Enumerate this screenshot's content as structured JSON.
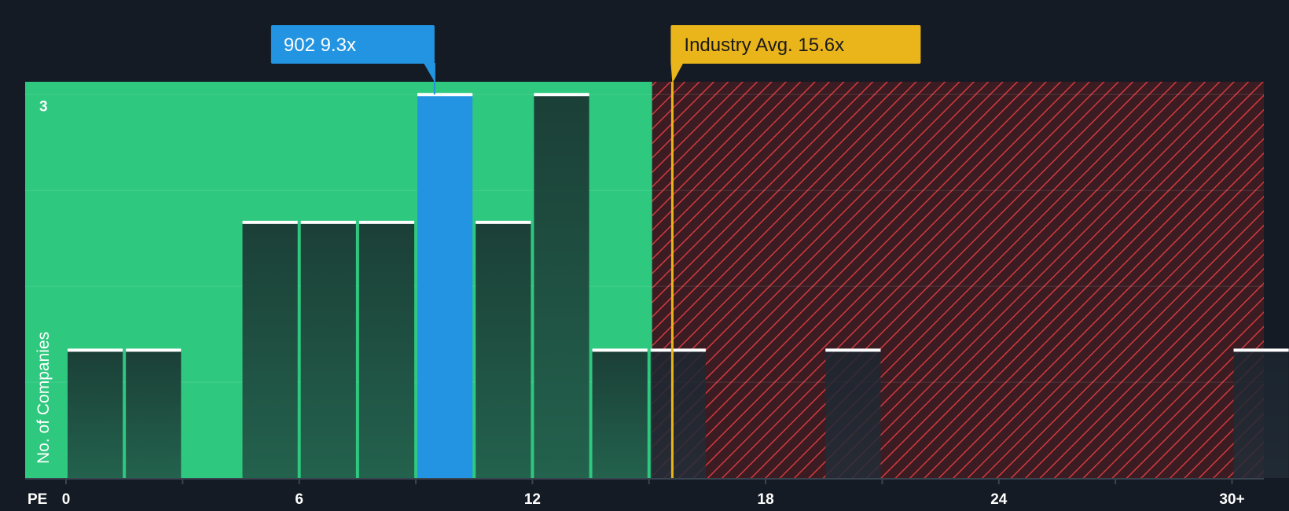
{
  "chart_data": {
    "type": "bar",
    "xlabel": "PE",
    "ylabel": "No. of Companies",
    "x_ticks": [
      0,
      6,
      12,
      18,
      24,
      30
    ],
    "x_tick_labels": [
      "0",
      "6",
      "12",
      "18",
      "24",
      "30+"
    ],
    "xlim": [
      0,
      30.8
    ],
    "ylim": [
      0,
      3.1
    ],
    "y_tick_labels": [
      {
        "value": 3,
        "label": "3"
      }
    ],
    "bin_width": 1.5,
    "bars": [
      {
        "x": 0.0,
        "value": 1
      },
      {
        "x": 1.5,
        "value": 1
      },
      {
        "x": 4.5,
        "value": 2
      },
      {
        "x": 6.0,
        "value": 2
      },
      {
        "x": 7.5,
        "value": 2
      },
      {
        "x": 9.0,
        "value": 3,
        "highlight": true
      },
      {
        "x": 10.5,
        "value": 2
      },
      {
        "x": 12.0,
        "value": 3
      },
      {
        "x": 13.5,
        "value": 1
      },
      {
        "x": 15.0,
        "value": 1
      },
      {
        "x": 19.5,
        "value": 1
      },
      {
        "x": 30.0,
        "value": 1
      }
    ],
    "subject": {
      "label": "902 9.3x",
      "value": 9.3
    },
    "industry_avg": {
      "label": "Industry Avg. 15.6x",
      "value": 15.6
    },
    "fair_zone_end": 15.0
  },
  "colors": {
    "background": "#151b24",
    "fair_zone": "#2ec87e",
    "expensive_zone": "#3a1c22",
    "hatch": "#d33a3e",
    "bar_fill": "#1d4a3e",
    "bar_top": "#ffffff",
    "subject": "#2394e2",
    "industry": "#eab51b"
  }
}
